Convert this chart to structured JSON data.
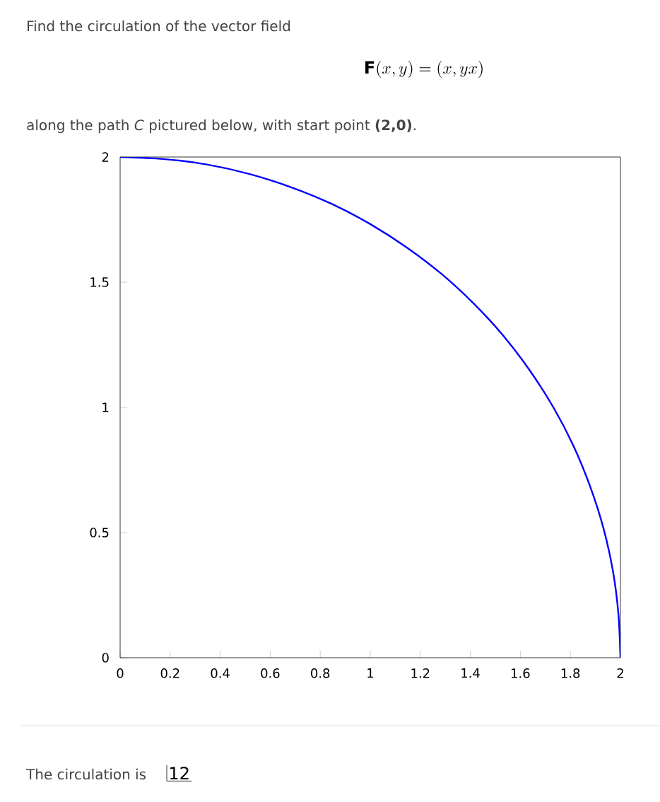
{
  "chart_data": {
    "type": "line",
    "title": "Find the circulation of the vector field",
    "annotations": [
      "\\mathbf{F}(x,y) = (x,yx)",
      "along the path *C* pictured below, with start point **(2,0)**.",
      "The circulation is",
      "12"
    ],
    "series": [
      {
        "color": "#0000ff",
        "x": [
          2,
          1.992,
          1.97,
          1.932,
          1.879,
          1.813,
          1.732,
          1.638,
          1.532,
          1.414,
          1.286,
          1.147,
          1.0,
          0.845,
          0.684,
          0.518,
          0.347,
          0.174,
          0
        ],
        "values": [
          0,
          0.174,
          0.347,
          0.518,
          0.684,
          0.845,
          1.0,
          1.147,
          1.286,
          1.414,
          1.532,
          1.638,
          1.732,
          1.813,
          1.879,
          1.932,
          1.97,
          1.992,
          2
        ]
      }
    ],
    "xlim": [
      0,
      2
    ],
    "ylim": [
      0,
      2
    ],
    "xticks": [
      0,
      0.2,
      0.4,
      0.6,
      0.8,
      1,
      1.2,
      1.4,
      1.6,
      1.8,
      2
    ],
    "yticks": [
      0,
      0.5,
      1,
      1.5,
      2
    ],
    "grid": false,
    "marker": "none",
    "line_style": "solid"
  }
}
